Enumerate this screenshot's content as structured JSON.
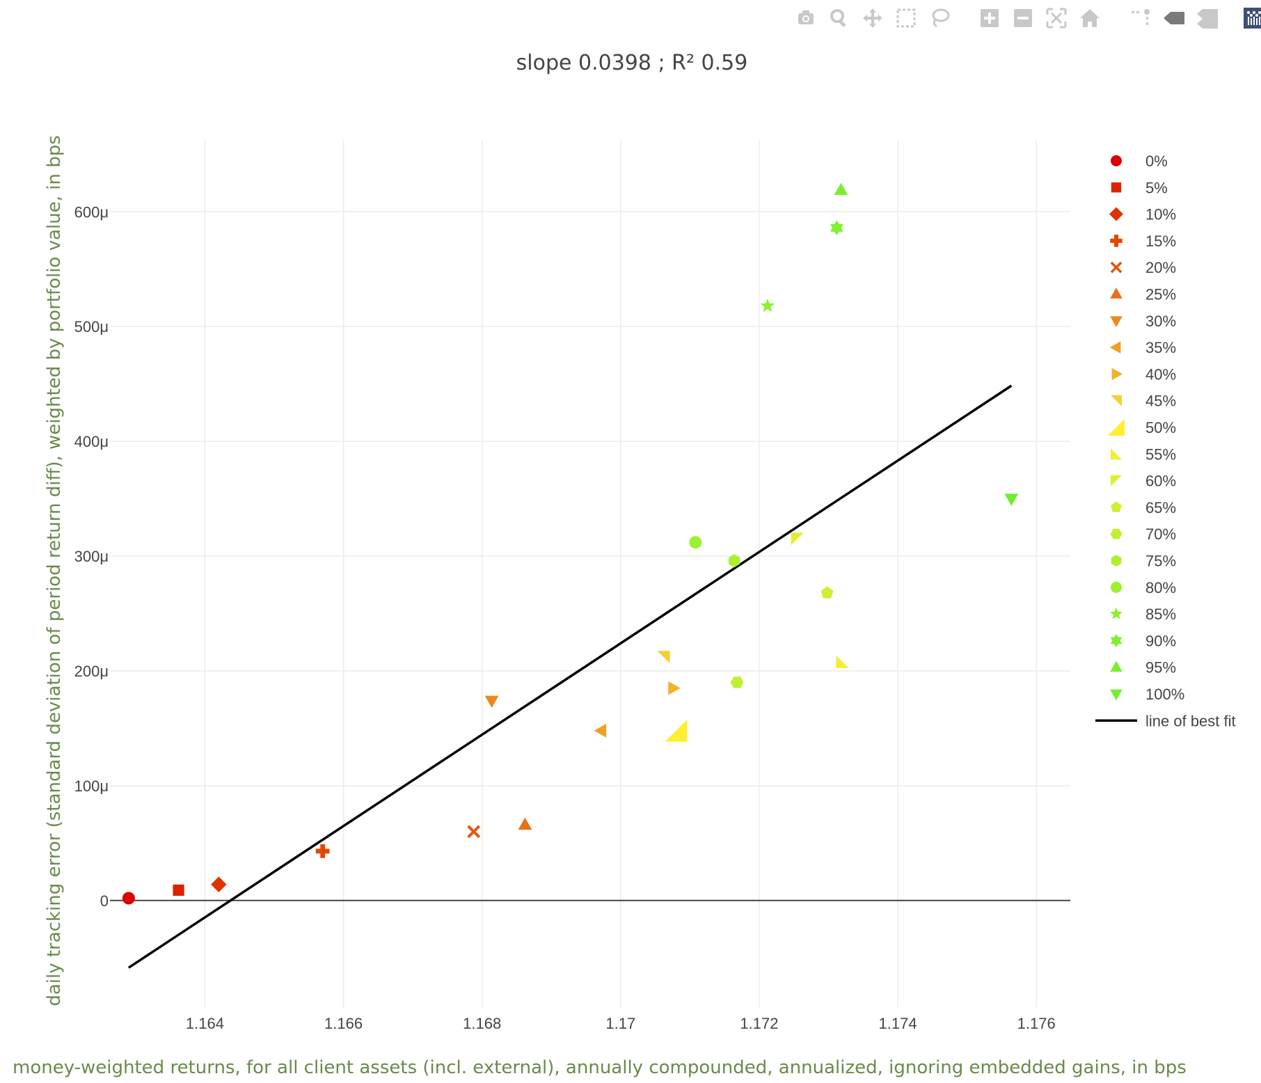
{
  "toolbar": {
    "buttons": [
      {
        "icon": "camera-icon",
        "label": "Download plot as a png"
      },
      {
        "icon": "zoom-icon",
        "label": "Zoom"
      },
      {
        "icon": "pan-icon",
        "label": "Pan"
      },
      {
        "icon": "box-select-icon",
        "label": "Box Select"
      },
      {
        "icon": "lasso-select-icon",
        "label": "Lasso Select"
      },
      {
        "icon": "zoom-in-icon",
        "label": "Zoom in"
      },
      {
        "icon": "zoom-out-icon",
        "label": "Zoom out"
      },
      {
        "icon": "autoscale-icon",
        "label": "Autoscale"
      },
      {
        "icon": "reset-axes-icon",
        "label": "Reset axes"
      },
      {
        "icon": "spike-lines-icon",
        "label": "Toggle Spike Lines"
      },
      {
        "icon": "hover-closest-icon",
        "label": "Show closest data on hover"
      },
      {
        "icon": "hover-compare-icon",
        "label": "Compare data on hover"
      },
      {
        "icon": "plotly-logo-icon",
        "label": "Produced with Plotly"
      }
    ]
  },
  "chart_data": {
    "type": "scatter",
    "title": "slope 0.0398 ; R² 0.59",
    "xlabel": "money-weighted returns, for all client assets (incl. external), annually compounded, annualized, ignoring embedded gains, in bps",
    "ylabel": "daily tracking error (standard deviation of period return diff), weighted by portfolio value, in bps",
    "xlim": [
      1.16263,
      1.17649
    ],
    "ylim": [
      -9.35e-05,
      0.000662
    ],
    "x_ticks": [
      {
        "value": 1.164,
        "label": "1.164"
      },
      {
        "value": 1.166,
        "label": "1.166"
      },
      {
        "value": 1.168,
        "label": "1.168"
      },
      {
        "value": 1.17,
        "label": "1.17"
      },
      {
        "value": 1.172,
        "label": "1.172"
      },
      {
        "value": 1.174,
        "label": "1.174"
      },
      {
        "value": 1.176,
        "label": "1.176"
      }
    ],
    "y_ticks": [
      {
        "value": 0,
        "label": "0"
      },
      {
        "value": 0.0001,
        "label": "100μ"
      },
      {
        "value": 0.0002,
        "label": "200μ"
      },
      {
        "value": 0.0003,
        "label": "300μ"
      },
      {
        "value": 0.0004,
        "label": "400μ"
      },
      {
        "value": 0.0005,
        "label": "500μ"
      },
      {
        "value": 0.0006,
        "label": "600μ"
      }
    ],
    "grid": true,
    "legend_position": "right",
    "series": [
      {
        "name": "0%",
        "symbol": "circle",
        "color": "#dd0000",
        "x": [
          1.1629
        ],
        "y": [
          2e-06
        ]
      },
      {
        "name": "5%",
        "symbol": "square",
        "color": "#dd2200",
        "x": [
          1.16362
        ],
        "y": [
          9e-06
        ]
      },
      {
        "name": "10%",
        "symbol": "diamond",
        "color": "#dd3300",
        "x": [
          1.1642
        ],
        "y": [
          1.4e-05
        ]
      },
      {
        "name": "15%",
        "symbol": "cross",
        "color": "#e04a00",
        "x": [
          1.1657
        ],
        "y": [
          4.3e-05
        ]
      },
      {
        "name": "20%",
        "symbol": "x",
        "color": "#e05a10",
        "x": [
          1.16788
        ],
        "y": [
          6e-05
        ]
      },
      {
        "name": "25%",
        "symbol": "triangle-up",
        "color": "#e87018",
        "x": [
          1.16862
        ],
        "y": [
          6.6e-05
        ]
      },
      {
        "name": "30%",
        "symbol": "triangle-down",
        "color": "#ea8a1e",
        "x": [
          1.16814
        ],
        "y": [
          0.000174
        ]
      },
      {
        "name": "35%",
        "symbol": "triangle-left",
        "color": "#eea024",
        "x": [
          1.16972
        ],
        "y": [
          0.000148
        ]
      },
      {
        "name": "40%",
        "symbol": "triangle-right",
        "color": "#f2b22a",
        "x": [
          1.17076
        ],
        "y": [
          0.000185
        ]
      },
      {
        "name": "45%",
        "symbol": "triangle-ne",
        "color": "#f5d030",
        "x": [
          1.17062
        ],
        "y": [
          0.000212
        ]
      },
      {
        "name": "50%",
        "symbol": "triangle-se-big",
        "color": "#ffee33",
        "x": [
          1.1708
        ],
        "y": [
          0.000148
        ]
      },
      {
        "name": "55%",
        "symbol": "triangle-sw",
        "color": "#f2ee30",
        "x": [
          1.1732
        ],
        "y": [
          0.000208
        ]
      },
      {
        "name": "60%",
        "symbol": "triangle-nw",
        "color": "#def030",
        "x": [
          1.17255
        ],
        "y": [
          0.000315
        ]
      },
      {
        "name": "65%",
        "symbol": "pentagon",
        "color": "#cdf030",
        "x": [
          1.17298
        ],
        "y": [
          0.000268
        ]
      },
      {
        "name": "70%",
        "symbol": "hexagon",
        "color": "#bef030",
        "x": [
          1.17168
        ],
        "y": [
          0.00019
        ]
      },
      {
        "name": "75%",
        "symbol": "hexagon2",
        "color": "#aef030",
        "x": [
          1.17164
        ],
        "y": [
          0.000296
        ]
      },
      {
        "name": "80%",
        "symbol": "octagon",
        "color": "#9bf030",
        "x": [
          1.17108
        ],
        "y": [
          0.000312
        ]
      },
      {
        "name": "85%",
        "symbol": "star",
        "color": "#8af030",
        "x": [
          1.17212
        ],
        "y": [
          0.000518
        ]
      },
      {
        "name": "90%",
        "symbol": "hexagram",
        "color": "#80f030",
        "x": [
          1.17312
        ],
        "y": [
          0.000586
        ]
      },
      {
        "name": "95%",
        "symbol": "triangle-up",
        "color": "#78ef30",
        "x": [
          1.17318
        ],
        "y": [
          0.000619
        ]
      },
      {
        "name": "100%",
        "symbol": "triangle-down",
        "color": "#70ee30",
        "x": [
          1.17564
        ],
        "y": [
          0.00035
        ]
      }
    ],
    "fit_line": {
      "name": "line of best fit",
      "color": "#000000",
      "x": [
        1.1629,
        1.17564
      ],
      "y": [
        -5.85e-05,
        0.0004485
      ]
    }
  }
}
